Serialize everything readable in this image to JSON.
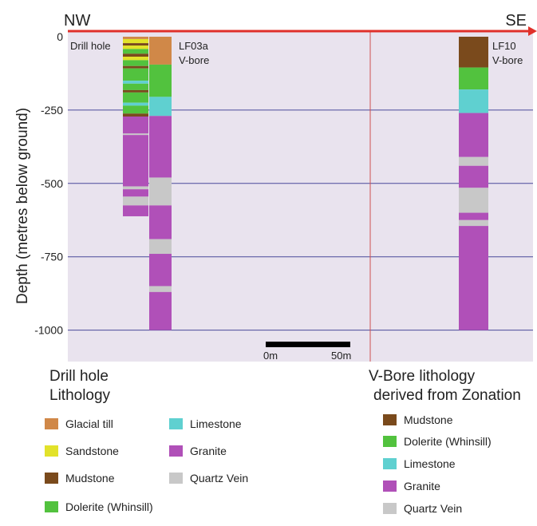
{
  "directions": {
    "left": "NW",
    "right": "SE"
  },
  "y_axis": {
    "title": "Depth (metres below ground)",
    "ticks": [
      {
        "value": 0,
        "label": "0"
      },
      {
        "value": -250,
        "label": "-250"
      },
      {
        "value": -500,
        "label": "-500"
      },
      {
        "value": -750,
        "label": "-750"
      },
      {
        "value": -1000,
        "label": "-1000"
      }
    ]
  },
  "colors": {
    "plot_bg": "#e9e3ee",
    "gridline": "#4a4a9a",
    "surface_arrow": "#e0302a",
    "divider": "#d05050",
    "Glacial till": "#d08848",
    "Sandstone": "#e2e22a",
    "Mudstone": "#7a4a1c",
    "Dolerite (Whinsill)": "#52c23e",
    "Limestone": "#5fd0d0",
    "Granite": "#b050b8",
    "Quartz Vein": "#c8c8c8"
  },
  "columns": [
    {
      "label_line1": "Drill hole",
      "label_line2": "",
      "intervals": [
        {
          "unit": "Glacial till",
          "top": 0,
          "bottom": -8
        },
        {
          "unit": "Sandstone",
          "top": -8,
          "bottom": -22
        },
        {
          "unit": "Mudstone",
          "top": -22,
          "bottom": -30
        },
        {
          "unit": "Sandstone",
          "top": -30,
          "bottom": -42
        },
        {
          "unit": "Dolerite (Whinsill)",
          "top": -42,
          "bottom": -58
        },
        {
          "unit": "Mudstone",
          "top": -58,
          "bottom": -68
        },
        {
          "unit": "Sandstone",
          "top": -68,
          "bottom": -80
        },
        {
          "unit": "Dolerite (Whinsill)",
          "top": -80,
          "bottom": -100
        },
        {
          "unit": "Mudstone",
          "top": -100,
          "bottom": -108
        },
        {
          "unit": "Dolerite (Whinsill)",
          "top": -108,
          "bottom": -150
        },
        {
          "unit": "Limestone",
          "top": -150,
          "bottom": -160
        },
        {
          "unit": "Dolerite (Whinsill)",
          "top": -160,
          "bottom": -182
        },
        {
          "unit": "Mudstone",
          "top": -182,
          "bottom": -190
        },
        {
          "unit": "Dolerite (Whinsill)",
          "top": -190,
          "bottom": -225
        },
        {
          "unit": "Limestone",
          "top": -225,
          "bottom": -235
        },
        {
          "unit": "Dolerite (Whinsill)",
          "top": -235,
          "bottom": -262
        },
        {
          "unit": "Mudstone",
          "top": -262,
          "bottom": -272
        },
        {
          "unit": "Granite",
          "top": -272,
          "bottom": -330
        },
        {
          "unit": "Quartz Vein",
          "top": -330,
          "bottom": -335
        },
        {
          "unit": "Granite",
          "top": -335,
          "bottom": -510
        },
        {
          "unit": "Quartz Vein",
          "top": -510,
          "bottom": -520
        },
        {
          "unit": "Granite",
          "top": -520,
          "bottom": -545
        },
        {
          "unit": "Quartz Vein",
          "top": -545,
          "bottom": -575
        },
        {
          "unit": "Granite",
          "top": -575,
          "bottom": -612
        }
      ]
    },
    {
      "label_line1": "LF03a",
      "label_line2": "V-bore",
      "intervals": [
        {
          "unit": "Glacial till",
          "top": 0,
          "bottom": -95
        },
        {
          "unit": "Dolerite (Whinsill)",
          "top": -95,
          "bottom": -205
        },
        {
          "unit": "Limestone",
          "top": -205,
          "bottom": -270
        },
        {
          "unit": "Granite",
          "top": -270,
          "bottom": -480
        },
        {
          "unit": "Quartz Vein",
          "top": -480,
          "bottom": -575
        },
        {
          "unit": "Granite",
          "top": -575,
          "bottom": -690
        },
        {
          "unit": "Quartz Vein",
          "top": -690,
          "bottom": -740
        },
        {
          "unit": "Granite",
          "top": -740,
          "bottom": -850
        },
        {
          "unit": "Quartz Vein",
          "top": -850,
          "bottom": -870
        },
        {
          "unit": "Granite",
          "top": -870,
          "bottom": -1000
        }
      ]
    },
    {
      "label_line1": "LF10",
      "label_line2": "V-bore",
      "intervals": [
        {
          "unit": "Mudstone",
          "top": 0,
          "bottom": -105
        },
        {
          "unit": "Dolerite (Whinsill)",
          "top": -105,
          "bottom": -180
        },
        {
          "unit": "Limestone",
          "top": -180,
          "bottom": -260
        },
        {
          "unit": "Granite",
          "top": -260,
          "bottom": -410
        },
        {
          "unit": "Quartz Vein",
          "top": -410,
          "bottom": -440
        },
        {
          "unit": "Granite",
          "top": -440,
          "bottom": -515
        },
        {
          "unit": "Quartz Vein",
          "top": -515,
          "bottom": -600
        },
        {
          "unit": "Granite",
          "top": -600,
          "bottom": -625
        },
        {
          "unit": "Quartz Vein",
          "top": -625,
          "bottom": -645
        },
        {
          "unit": "Granite",
          "top": -645,
          "bottom": -1000
        }
      ]
    }
  ],
  "scale_bar": {
    "left_label": "0m",
    "right_label": "50m"
  },
  "legend_left": {
    "title_line1": "Drill hole",
    "title_line2": "Lithology",
    "items": [
      "Glacial till",
      "Sandstone",
      "Mudstone",
      "Dolerite (Whinsill)",
      "Limestone",
      "Granite",
      "Quartz Vein"
    ]
  },
  "legend_right": {
    "title_line1": "V-Bore lithology",
    "title_line2": "derived from Zonation",
    "items": [
      "Mudstone",
      "Dolerite (Whinsill)",
      "Limestone",
      "Granite",
      "Quartz Vein"
    ]
  }
}
